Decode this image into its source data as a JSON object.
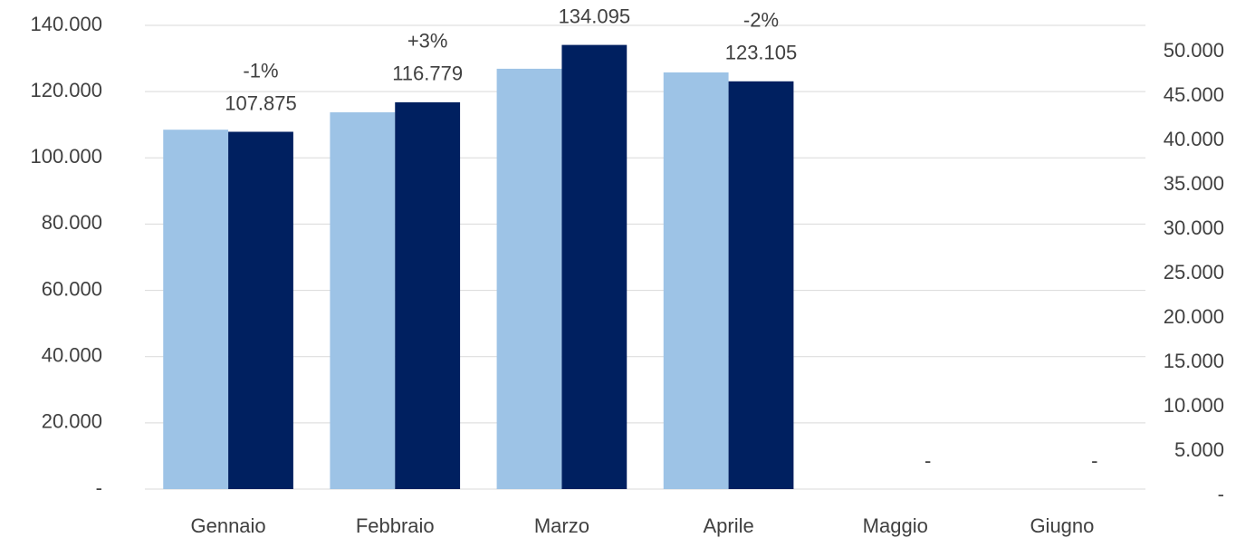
{
  "chart_data": {
    "type": "bar",
    "categories": [
      "Gennaio",
      "Febbraio",
      "Marzo",
      "Aprile",
      "Maggio",
      "Giugno"
    ],
    "series": [
      {
        "color": "#9dc3e6",
        "values": [
          108500,
          113750,
          126900,
          125800,
          0,
          0
        ]
      },
      {
        "color": "#002060",
        "values": [
          107875,
          116779,
          134095,
          123105,
          0,
          0
        ],
        "value_labels": [
          "107.875",
          "116.779",
          "134.095",
          "123.105",
          "-",
          "-"
        ],
        "change_labels": [
          "-1%",
          "+3%",
          null,
          "-2%",
          null,
          null
        ]
      }
    ],
    "ylim": [
      0,
      140000
    ],
    "yticks": [
      {
        "value": 0,
        "label": "-"
      },
      {
        "value": 20000,
        "label": "20.000"
      },
      {
        "value": 40000,
        "label": "40.000"
      },
      {
        "value": 60000,
        "label": "60.000"
      },
      {
        "value": 80000,
        "label": "80.000"
      },
      {
        "value": 100000,
        "label": "100.000"
      },
      {
        "value": 120000,
        "label": "120.000"
      },
      {
        "value": 140000,
        "label": "140.000"
      }
    ],
    "y2lim": [
      0,
      53000
    ],
    "y2ticks": [
      {
        "value": 0,
        "label": "-"
      },
      {
        "value": 5000,
        "label": "5.000"
      },
      {
        "value": 10000,
        "label": "10.000"
      },
      {
        "value": 15000,
        "label": "15.000"
      },
      {
        "value": 20000,
        "label": "20.000"
      },
      {
        "value": 25000,
        "label": "25.000"
      },
      {
        "value": 30000,
        "label": "30.000"
      },
      {
        "value": 35000,
        "label": "35.000"
      },
      {
        "value": 40000,
        "label": "40.000"
      },
      {
        "value": 45000,
        "label": "45.000"
      },
      {
        "value": 50000,
        "label": "50.000"
      }
    ],
    "grid": true
  }
}
